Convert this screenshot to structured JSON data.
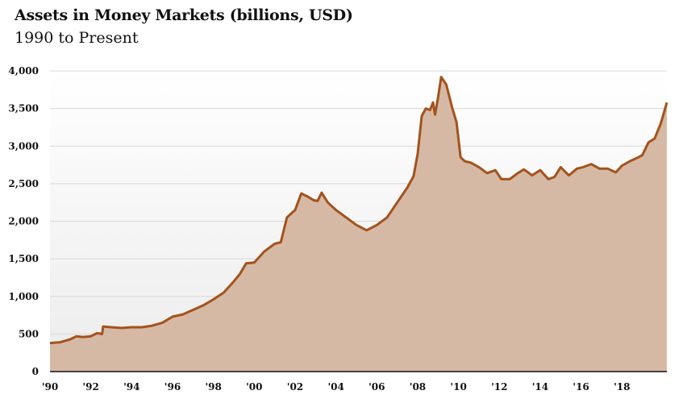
{
  "chart_data": {
    "type": "area",
    "title": "Assets in Money Markets (billions, USD)",
    "subtitle": "1990 to Present",
    "xlabel": "",
    "ylabel": "",
    "ylim": [
      0,
      4000
    ],
    "xlim": [
      1990,
      2020.2
    ],
    "grid": true,
    "y_ticks": [
      0,
      500,
      1000,
      1500,
      2000,
      2500,
      3000,
      3500,
      4000
    ],
    "y_tick_labels": [
      "0",
      "500",
      "1,000",
      "1,500",
      "2,000",
      "2,500",
      "3,000",
      "3,500",
      "4,000"
    ],
    "x_ticks": [
      1990,
      1992,
      1994,
      1996,
      1998,
      2000,
      2002,
      2004,
      2006,
      2008,
      2010,
      2012,
      2014,
      2016,
      2018
    ],
    "x_tick_labels": [
      "'90",
      "'92",
      "'94",
      "'96",
      "'98",
      "'00",
      "'02",
      "'04",
      "'06",
      "'08",
      "'10",
      "'12",
      "'14",
      "'16",
      "'18"
    ],
    "colors": {
      "line": "#a4521b",
      "fill": "#d5b9a5",
      "grid": "#d8d8d8"
    },
    "x": [
      1990,
      1990.5,
      1991,
      1991.3,
      1991.6,
      1992,
      1992.3,
      1992.55,
      1992.6,
      1993,
      1993.5,
      1994,
      1994.5,
      1995,
      1995.5,
      1996,
      1996.5,
      1997,
      1997.5,
      1998,
      1998.5,
      1999,
      1999.3,
      1999.6,
      2000,
      2000.5,
      2001,
      2001.3,
      2001.6,
      2002,
      2002.3,
      2002.6,
      2002.9,
      2003.1,
      2003.3,
      2003.6,
      2004,
      2004.5,
      2005,
      2005.5,
      2006,
      2006.5,
      2007,
      2007.5,
      2007.8,
      2008,
      2008.2,
      2008.4,
      2008.6,
      2008.75,
      2008.85,
      2009.0,
      2009.15,
      2009.4,
      2009.7,
      2009.9,
      2010.1,
      2010.3,
      2010.6,
      2011,
      2011.4,
      2011.8,
      2012.1,
      2012.5,
      2012.9,
      2013.2,
      2013.6,
      2014,
      2014.4,
      2014.7,
      2015,
      2015.4,
      2015.8,
      2016.1,
      2016.5,
      2016.9,
      2017.3,
      2017.7,
      2018,
      2018.4,
      2018.8,
      2019,
      2019.3,
      2019.6,
      2019.9,
      2020.2
    ],
    "y": [
      380,
      390,
      430,
      470,
      460,
      470,
      510,
      500,
      600,
      590,
      580,
      590,
      590,
      610,
      650,
      730,
      760,
      820,
      880,
      960,
      1050,
      1200,
      1300,
      1440,
      1450,
      1600,
      1700,
      1720,
      2050,
      2150,
      2370,
      2330,
      2280,
      2270,
      2380,
      2250,
      2150,
      2050,
      1950,
      1880,
      1950,
      2050,
      2250,
      2450,
      2600,
      2900,
      3400,
      3500,
      3480,
      3580,
      3420,
      3650,
      3920,
      3820,
      3500,
      3320,
      2850,
      2800,
      2780,
      2720,
      2640,
      2680,
      2560,
      2560,
      2640,
      2690,
      2610,
      2680,
      2560,
      2590,
      2720,
      2610,
      2700,
      2720,
      2760,
      2700,
      2700,
      2650,
      2740,
      2800,
      2850,
      2880,
      3050,
      3100,
      3300,
      3580
    ]
  }
}
